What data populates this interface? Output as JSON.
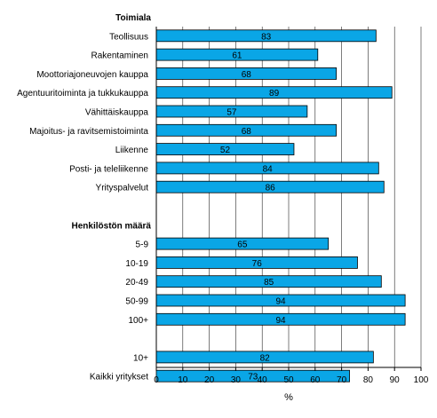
{
  "chart_data": {
    "type": "bar",
    "orientation": "horizontal",
    "rows": [
      {
        "kind": "header",
        "label": "Toimiala"
      },
      {
        "kind": "bar",
        "label": "Teollisuus",
        "value": 83
      },
      {
        "kind": "bar",
        "label": "Rakentaminen",
        "value": 61
      },
      {
        "kind": "bar",
        "label": "Moottoriajoneuvojen kauppa",
        "value": 68
      },
      {
        "kind": "bar",
        "label": "Agentuuritoiminta ja tukkukauppa",
        "value": 89
      },
      {
        "kind": "bar",
        "label": "Vähittäiskauppa",
        "value": 57
      },
      {
        "kind": "bar",
        "label": "Majoitus- ja ravitsemistoiminta",
        "value": 68
      },
      {
        "kind": "bar",
        "label": "Liikenne",
        "value": 52
      },
      {
        "kind": "bar",
        "label": "Posti- ja teleliikenne",
        "value": 84
      },
      {
        "kind": "bar",
        "label": "Yrityspalvelut",
        "value": 86
      },
      {
        "kind": "gap"
      },
      {
        "kind": "header",
        "label": "Henkilöstön määrä"
      },
      {
        "kind": "bar",
        "label": "5-9",
        "value": 65
      },
      {
        "kind": "bar",
        "label": "10-19",
        "value": 76
      },
      {
        "kind": "bar",
        "label": "20-49",
        "value": 85
      },
      {
        "kind": "bar",
        "label": "50-99",
        "value": 94
      },
      {
        "kind": "bar",
        "label": "100+",
        "value": 94
      },
      {
        "kind": "gap"
      },
      {
        "kind": "bar",
        "label": "10+",
        "value": 82
      },
      {
        "kind": "bar",
        "label": "Kaikki yritykset",
        "value": 73
      }
    ],
    "xlim": [
      0,
      100
    ],
    "xticks": [
      0,
      10,
      20,
      30,
      40,
      50,
      60,
      70,
      80,
      90,
      100
    ],
    "xlabel": "%",
    "grid": "vertical lines at 10-unit intervals",
    "colors": {
      "bar": "#0aa6e6",
      "bar_edge": "#000000",
      "grid": "#000000"
    }
  }
}
